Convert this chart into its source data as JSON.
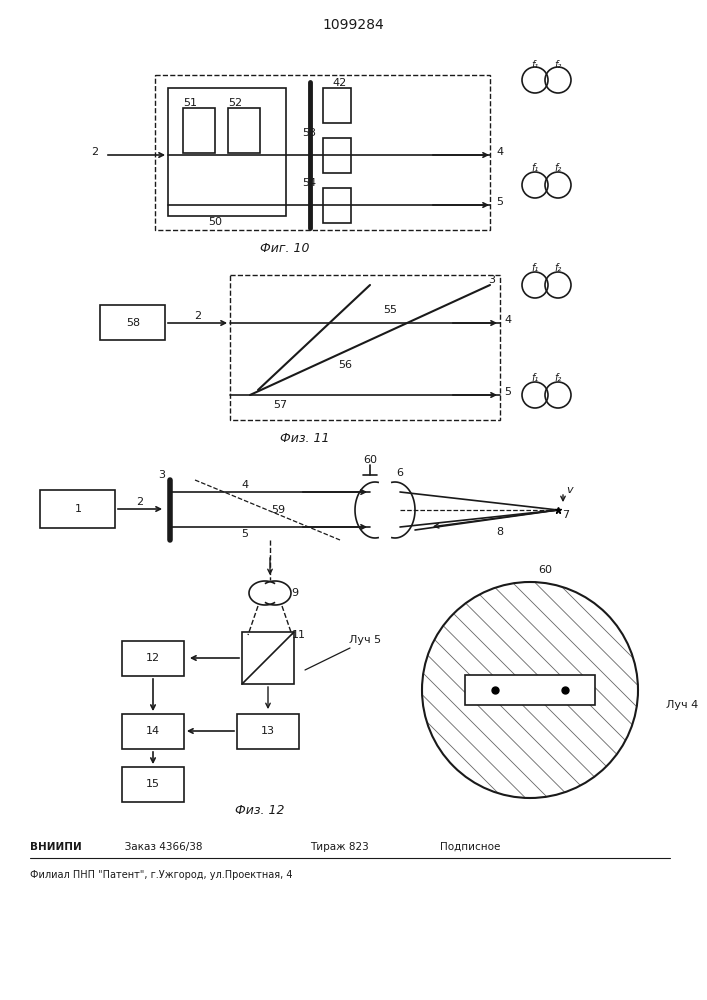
{
  "title": "1099284",
  "fig10_label": "Фиг. 10",
  "fig11_label": "Физ. 11",
  "fig12_label": "Физ. 12",
  "footer_line1": "ВНИИПИ    Заказ 4366/38    Тираж 823    Подписное",
  "footer_line2": "Филиал ППП \"Патент\", г.Ужгород,ул.Проектная, 4",
  "background": "#ffffff",
  "lc": "#1a1a1a"
}
